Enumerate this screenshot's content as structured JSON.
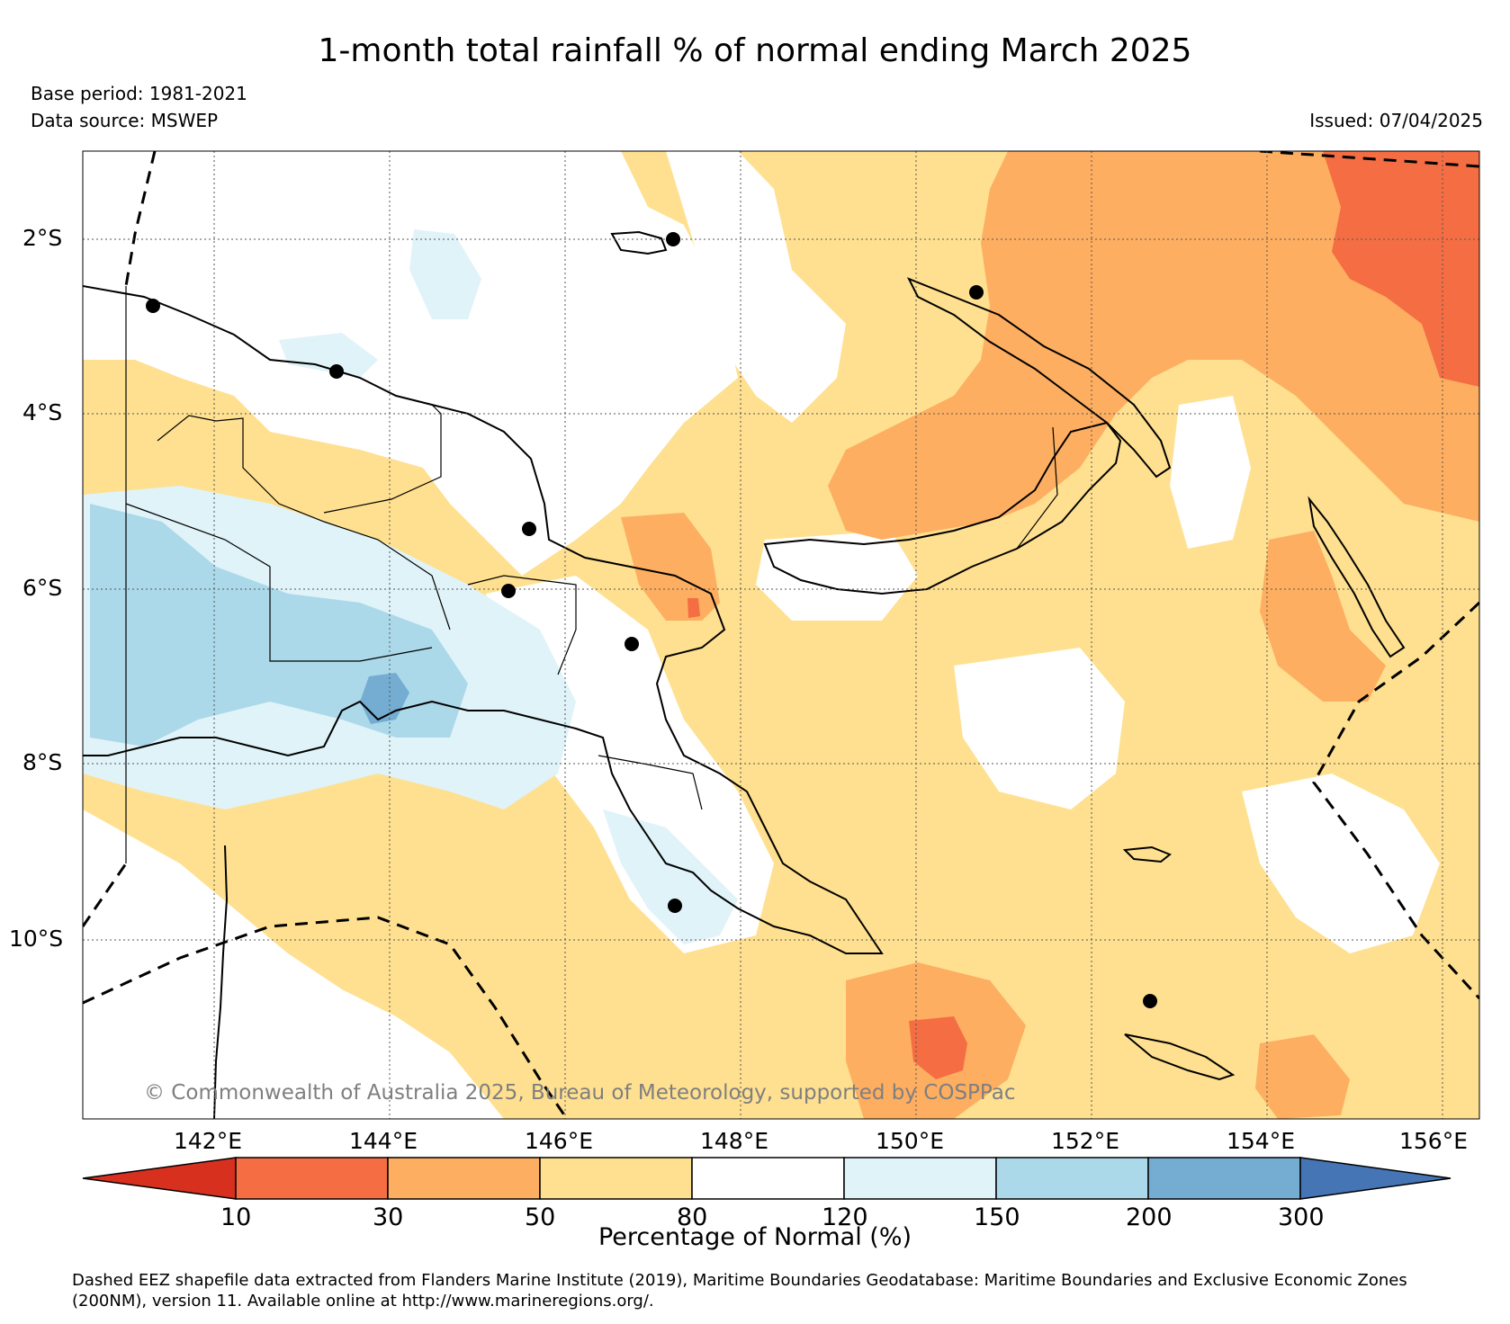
{
  "title": "1-month total rainfall % of normal ending March 2025",
  "base_period": "Base period: 1981-2021",
  "data_source": "Data source: MSWEP",
  "issued": "Issued: 07/04/2025",
  "credit": "© Commonwealth of Australia 2025, Bureau of Meteorology, supported by COSPPac",
  "footer_line1": "Dashed EEZ shapefile data extracted from Flanders Marine Institute (2019), Maritime Boundaries Geodatabase: Maritime Boundaries and Exclusive Economic Zones",
  "footer_line2": "(200NM), version 11. Available online at http://www.marineregions.org/.",
  "lat_labels": [
    "2°S",
    "4°S",
    "6°S",
    "8°S",
    "10°S"
  ],
  "lon_labels": [
    "142°E",
    "144°E",
    "146°E",
    "148°E",
    "150°E",
    "152°E",
    "154°E",
    "156°E"
  ],
  "colorbar": {
    "title": "Percentage of Normal (%)",
    "ticks": [
      "10",
      "30",
      "50",
      "80",
      "120",
      "150",
      "200",
      "300"
    ],
    "colors": [
      "#d7301f",
      "#f46d43",
      "#fdae61",
      "#fee090",
      "#ffffff",
      "#e0f3f8",
      "#abd9e9",
      "#74add1",
      "#4575b4"
    ]
  }
}
